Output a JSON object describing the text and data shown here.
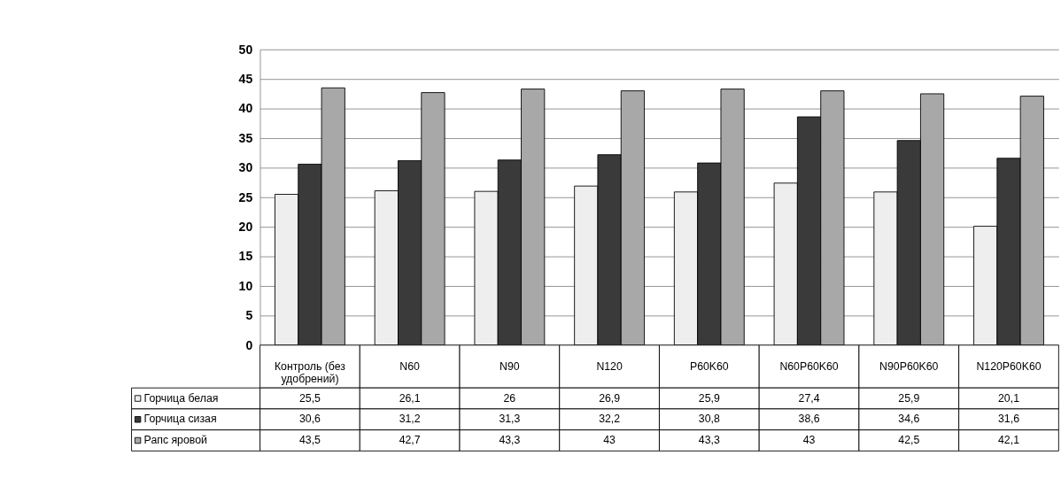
{
  "chart_data": {
    "type": "bar",
    "categories": [
      "Контроль (без удобрений)",
      "N60",
      "N90",
      "N120",
      "P60K60",
      "N60P60K60",
      "N90P60K60",
      "N120P60K60"
    ],
    "series": [
      {
        "name": "Горчица белая",
        "color": "#eeeeee",
        "values": [
          25.5,
          26.1,
          26,
          26.9,
          25.9,
          27.4,
          25.9,
          20.1
        ],
        "value_labels": [
          "25,5",
          "26,1",
          "26",
          "26,9",
          "25,9",
          "27,4",
          "25,9",
          "20,1"
        ]
      },
      {
        "name": "Горчица сизая",
        "color": "#3a3a3a",
        "values": [
          30.6,
          31.2,
          31.3,
          32.2,
          30.8,
          38.6,
          34.6,
          31.6
        ],
        "value_labels": [
          "30,6",
          "31,2",
          "31,3",
          "32,2",
          "30,8",
          "38,6",
          "34,6",
          "31,6"
        ]
      },
      {
        "name": "Рапс яровой",
        "color": "#a8a8a8",
        "values": [
          43.5,
          42.7,
          43.3,
          43,
          43.3,
          43,
          42.5,
          42.1
        ],
        "value_labels": [
          "43,5",
          "42,7",
          "43,3",
          "43",
          "43,3",
          "43",
          "42,5",
          "42,1"
        ]
      }
    ],
    "ylim": [
      0,
      50
    ],
    "yticks": [
      0,
      5,
      10,
      15,
      20,
      25,
      30,
      35,
      40,
      45,
      50
    ],
    "grid": "y",
    "legend": "bottom left"
  }
}
